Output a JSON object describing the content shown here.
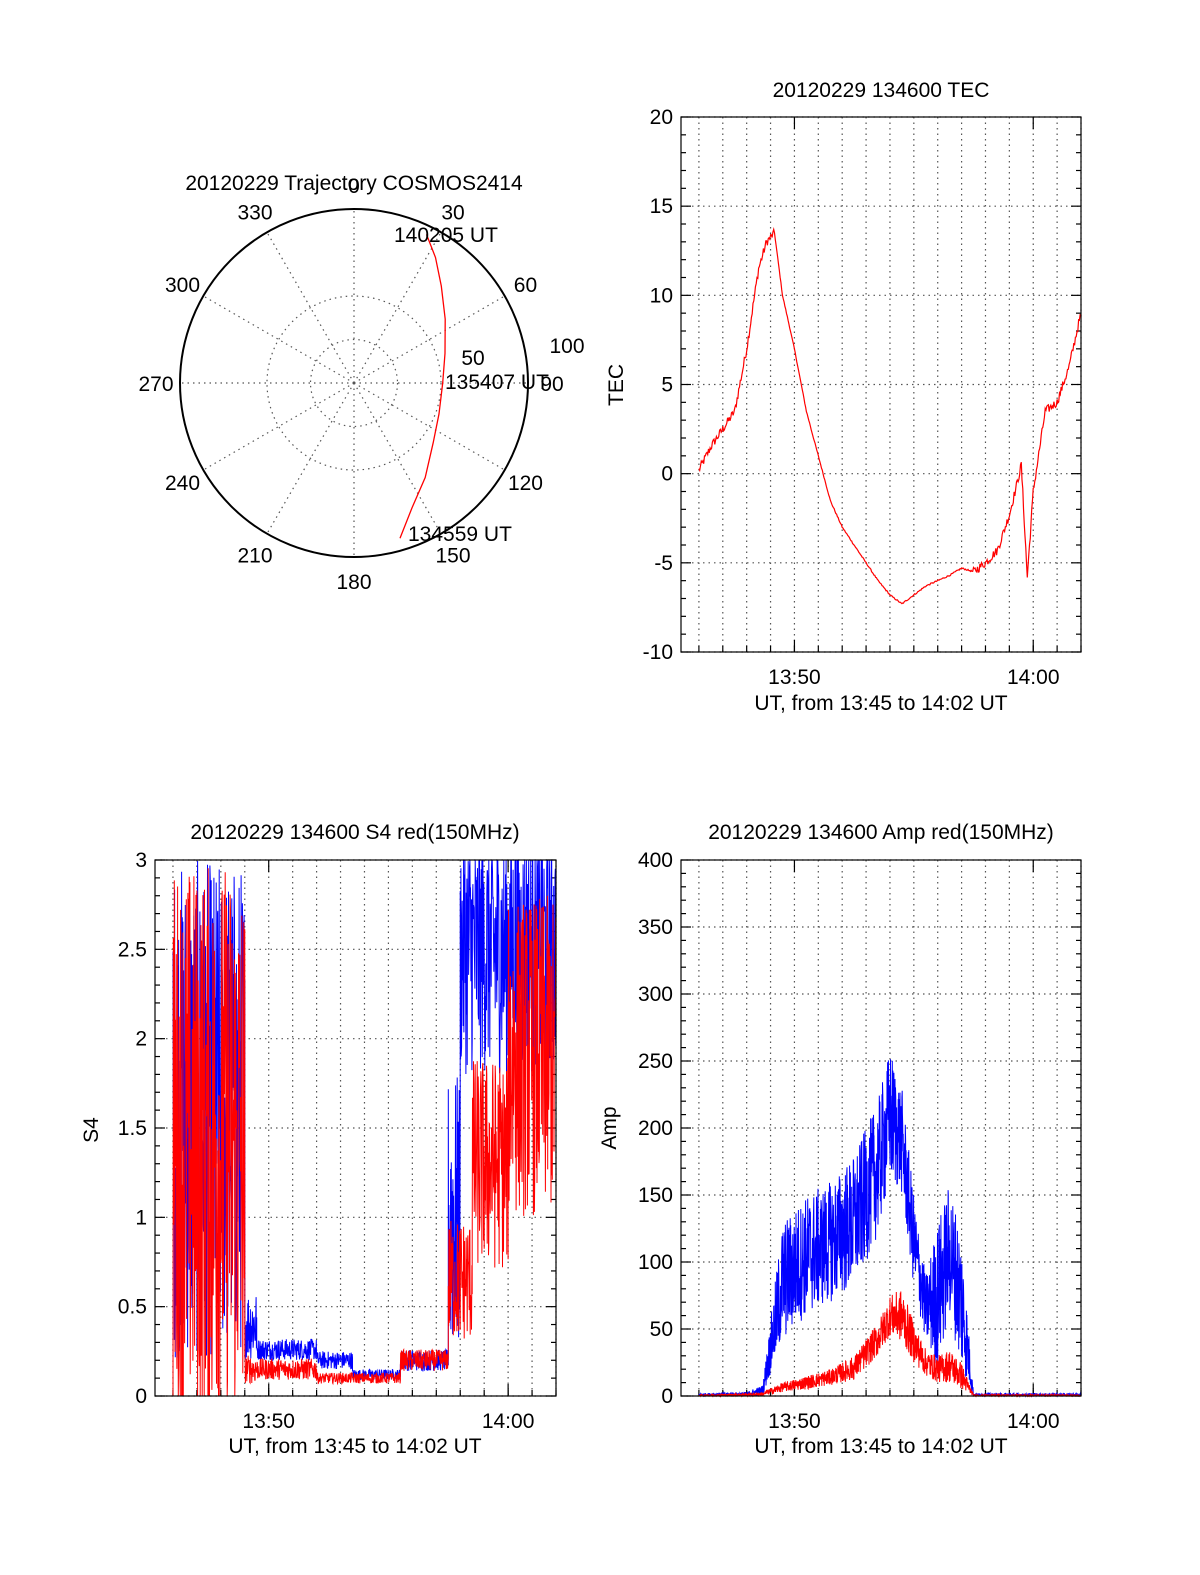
{
  "colors": {
    "red": "#ff0000",
    "blue": "#0000ff",
    "axes": "#000000"
  },
  "chart_data": [
    {
      "type": "polar",
      "title": "20120229 Trajectory COSMOS2414",
      "angle_labels": [
        "0",
        "30",
        "60",
        "90",
        "120",
        "150",
        "180",
        "210",
        "240",
        "270",
        "300",
        "330"
      ],
      "radius_labels": [
        "50",
        "100"
      ],
      "rlim": [
        0,
        100
      ],
      "grid": true,
      "track_start_label": "134559 UT",
      "track_mid_label": "135407 UT",
      "track_end_label": "140205 UT",
      "track": [
        {
          "az": 163.5,
          "zd": 93
        },
        {
          "az": 155,
          "zd": 79
        },
        {
          "az": 143,
          "zd": 68
        },
        {
          "az": 127,
          "zd": 57
        },
        {
          "az": 110,
          "zd": 52
        },
        {
          "az": 90,
          "zd": 51
        },
        {
          "az": 72,
          "zd": 55
        },
        {
          "az": 55,
          "zd": 64
        },
        {
          "az": 42,
          "zd": 75
        },
        {
          "az": 33,
          "zd": 86
        },
        {
          "az": 26,
          "zd": 95
        }
      ]
    },
    {
      "type": "line",
      "title": "20120229 134600 TEC",
      "xlabel": "UT, from 13:45 to 14:02 UT",
      "ylabel": "TEC",
      "xlim": [
        "13:45:15",
        "14:02:00"
      ],
      "ylim": [
        -10,
        20
      ],
      "xticks": [
        "13:50",
        "14:00"
      ],
      "yticks": [
        -10,
        -5,
        0,
        5,
        10,
        15,
        20
      ],
      "grid": true,
      "series": [
        {
          "color": "#ff0000",
          "x": [
            "13:46:00",
            "13:46:30",
            "13:47:00",
            "13:47:30",
            "13:48:00",
            "13:48:30",
            "13:48:50",
            "13:49:10",
            "13:49:30",
            "13:50:00",
            "13:50:30",
            "13:51:00",
            "13:51:30",
            "13:52:00",
            "13:52:30",
            "13:53:00",
            "13:53:30",
            "13:54:00",
            "13:54:30",
            "13:55:00",
            "13:55:30",
            "13:56:00",
            "13:56:30",
            "13:57:00",
            "13:57:30",
            "13:58:00",
            "13:58:30",
            "13:59:00",
            "13:59:20",
            "13:59:30",
            "13:59:45",
            "14:00:00",
            "14:00:30",
            "14:01:00",
            "14:01:30",
            "14:02:00"
          ],
          "values": [
            0.2,
            1.5,
            2.5,
            3.5,
            7,
            11.5,
            13,
            13.5,
            10,
            7,
            3.5,
            1,
            -1.5,
            -3,
            -4,
            -5,
            -6,
            -6.8,
            -7.3,
            -6.8,
            -6.3,
            -6,
            -5.7,
            -5.3,
            -5.5,
            -5,
            -4.3,
            -2.3,
            -0.5,
            0.5,
            -5.8,
            -1,
            3.5,
            4,
            6,
            9
          ]
        }
      ]
    },
    {
      "type": "line",
      "title": "20120229 134600 S4 red(150MHz)",
      "xlabel": "UT, from 13:45 to 14:02 UT",
      "ylabel": "S4",
      "xlim": [
        "13:45:15",
        "14:02:00"
      ],
      "ylim": [
        0,
        3
      ],
      "xticks": [
        "13:50",
        "14:00"
      ],
      "yticks": [
        0,
        0.5,
        1,
        1.5,
        2,
        2.5,
        3
      ],
      "grid": true,
      "series": [
        {
          "color": "#0000ff",
          "segments": [
            {
              "x": [
                "13:46:00",
                "13:49:00"
              ],
              "mean": 1.6,
              "amp": 1.4
            },
            {
              "x": [
                "13:49:00",
                "13:49:30"
              ],
              "mean": 0.4,
              "amp": 0.2
            },
            {
              "x": [
                "13:49:30",
                "13:52:00"
              ],
              "mean": 0.26,
              "amp": 0.06
            },
            {
              "x": [
                "13:52:00",
                "13:53:30"
              ],
              "mean": 0.2,
              "amp": 0.05
            },
            {
              "x": [
                "13:53:30",
                "13:55:30"
              ],
              "mean": 0.12,
              "amp": 0.03
            },
            {
              "x": [
                "13:55:30",
                "13:57:30"
              ],
              "mean": 0.2,
              "amp": 0.06
            },
            {
              "x": [
                "13:57:30",
                "13:58:00"
              ],
              "mean": 1.0,
              "amp": 0.8
            },
            {
              "x": [
                "13:58:00",
                "14:02:00"
              ],
              "mean": 2.5,
              "amp": 0.7
            }
          ]
        },
        {
          "color": "#ff0000",
          "segments": [
            {
              "x": [
                "13:46:00",
                "13:49:00"
              ],
              "mean": 1.4,
              "amp": 1.6
            },
            {
              "x": [
                "13:49:00",
                "13:49:30"
              ],
              "mean": 0.15,
              "amp": 0.08
            },
            {
              "x": [
                "13:49:30",
                "13:52:00"
              ],
              "mean": 0.15,
              "amp": 0.06
            },
            {
              "x": [
                "13:52:00",
                "13:55:30"
              ],
              "mean": 0.1,
              "amp": 0.03
            },
            {
              "x": [
                "13:55:30",
                "13:57:30"
              ],
              "mean": 0.2,
              "amp": 0.06
            },
            {
              "x": [
                "13:57:30",
                "13:58:30"
              ],
              "mean": 0.65,
              "amp": 0.35
            },
            {
              "x": [
                "13:58:30",
                "14:00:00"
              ],
              "mean": 1.3,
              "amp": 0.6
            },
            {
              "x": [
                "14:00:00",
                "14:02:00"
              ],
              "mean": 1.9,
              "amp": 0.9
            }
          ]
        }
      ]
    },
    {
      "type": "line",
      "title": "20120229 134600 Amp red(150MHz)",
      "xlabel": "UT, from 13:45 to 14:02 UT",
      "ylabel": "Amp",
      "xlim": [
        "13:45:15",
        "14:02:00"
      ],
      "ylim": [
        0,
        400
      ],
      "xticks": [
        "13:50",
        "14:00"
      ],
      "yticks": [
        0,
        50,
        100,
        150,
        200,
        250,
        300,
        350,
        400
      ],
      "grid": true,
      "series": [
        {
          "color": "#0000ff",
          "envelope": {
            "x": [
              "13:46:00",
              "13:48:00",
              "13:48:40",
              "13:49:30",
              "13:50:30",
              "13:51:30",
              "13:52:30",
              "13:53:30",
              "13:54:00",
              "13:54:30",
              "13:55:00",
              "13:55:30",
              "13:56:00",
              "13:56:30",
              "13:57:00",
              "13:57:30",
              "13:58:00",
              "14:02:00"
            ],
            "lower": [
              0,
              0,
              0,
              40,
              60,
              70,
              80,
              120,
              160,
              150,
              80,
              40,
              20,
              60,
              20,
              0,
              0,
              0
            ],
            "upper": [
              2,
              3,
              8,
              130,
              150,
              160,
              180,
              220,
              260,
              230,
              150,
              90,
              130,
              160,
              120,
              2,
              2,
              2
            ]
          }
        },
        {
          "color": "#ff0000",
          "envelope": {
            "x": [
              "13:46:00",
              "13:48:00",
              "13:48:40",
              "13:49:30",
              "13:50:30",
              "13:51:30",
              "13:52:30",
              "13:53:30",
              "13:54:00",
              "13:54:30",
              "13:55:00",
              "13:55:30",
              "13:56:00",
              "13:56:30",
              "13:57:00",
              "13:57:30",
              "13:58:00",
              "14:02:00"
            ],
            "lower": [
              0,
              0,
              0,
              3,
              5,
              8,
              12,
              30,
              45,
              40,
              25,
              15,
              10,
              10,
              5,
              0,
              0,
              0
            ],
            "upper": [
              1,
              2,
              3,
              10,
              15,
              20,
              30,
              55,
              75,
              80,
              55,
              35,
              30,
              35,
              25,
              1,
              1,
              1
            ]
          }
        }
      ]
    }
  ]
}
